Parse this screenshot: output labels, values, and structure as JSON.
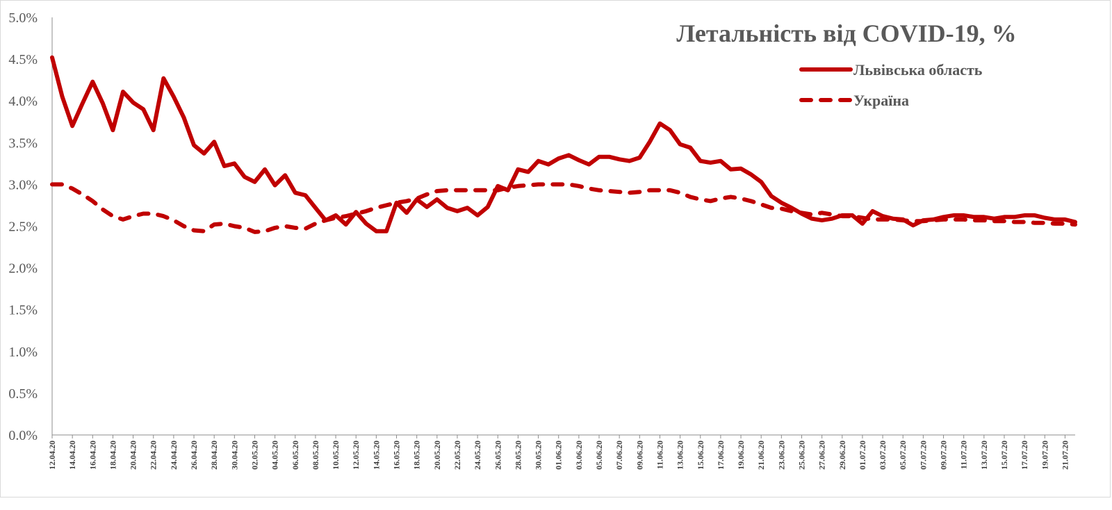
{
  "chart_data": {
    "type": "line",
    "title": "Летальність від COVID-19, %",
    "xlabel": "",
    "ylabel": "",
    "ylim": [
      0,
      5
    ],
    "yticks": [
      "0.0%",
      "0.5%",
      "1.0%",
      "1.5%",
      "2.0%",
      "2.5%",
      "3.0%",
      "3.5%",
      "4.0%",
      "4.5%",
      "5.0%"
    ],
    "legend_position": "top-right",
    "grid": false,
    "start_date": "12.04.20",
    "x_tick_labels": [
      "12.04.20",
      "14.04.20",
      "16.04.20",
      "18.04.20",
      "20.04.20",
      "22.04.20",
      "24.04.20",
      "26.04.20",
      "28.04.20",
      "30.04.20",
      "02.05.20",
      "04.05.20",
      "06.05.20",
      "08.05.20",
      "10.05.20",
      "12.05.20",
      "14.05.20",
      "16.05.20",
      "18.05.20",
      "20.05.20",
      "22.05.20",
      "24.05.20",
      "26.05.20",
      "28.05.20",
      "30.05.20",
      "01.06.20",
      "03.06.20",
      "05.06.20",
      "07.06.20",
      "09.06.20",
      "11.06.20",
      "13.06.20",
      "15.06.20",
      "17.06.20",
      "19.06.20",
      "21.06.20",
      "23.06.20",
      "25.06.20",
      "27.06.20",
      "29.06.20",
      "01.07.20",
      "03.07.20",
      "05.07.20",
      "07.07.20",
      "09.07.20",
      "11.07.20",
      "13.07.20",
      "15.07.20",
      "17.07.20",
      "19.07.20",
      "21.07.20"
    ],
    "series": [
      {
        "name": "Львівська область",
        "style": "solid",
        "color": "#c00000",
        "values": [
          4.52,
          4.05,
          3.7,
          3.97,
          4.23,
          3.97,
          3.65,
          4.11,
          3.98,
          3.9,
          3.65,
          4.27,
          4.05,
          3.8,
          3.47,
          3.37,
          3.51,
          3.22,
          3.25,
          3.09,
          3.03,
          3.18,
          2.99,
          3.11,
          2.9,
          2.87,
          2.72,
          2.57,
          2.63,
          2.52,
          2.67,
          2.53,
          2.44,
          2.44,
          2.78,
          2.66,
          2.82,
          2.73,
          2.82,
          2.72,
          2.68,
          2.72,
          2.63,
          2.73,
          2.98,
          2.93,
          3.18,
          3.15,
          3.28,
          3.24,
          3.31,
          3.35,
          3.29,
          3.24,
          3.33,
          3.33,
          3.3,
          3.28,
          3.32,
          3.51,
          3.73,
          3.65,
          3.48,
          3.44,
          3.28,
          3.26,
          3.28,
          3.18,
          3.19,
          3.12,
          3.03,
          2.86,
          2.78,
          2.72,
          2.65,
          2.59,
          2.57,
          2.59,
          2.63,
          2.63,
          2.53,
          2.68,
          2.62,
          2.59,
          2.58,
          2.51,
          2.57,
          2.58,
          2.61,
          2.63,
          2.63,
          2.61,
          2.61,
          2.59,
          2.61,
          2.61,
          2.63,
          2.63,
          2.6,
          2.58,
          2.58,
          2.55
        ]
      },
      {
        "name": "Україна",
        "style": "dashed",
        "color": "#c00000",
        "values": [
          3.0,
          3.0,
          2.95,
          2.88,
          2.8,
          2.7,
          2.62,
          2.58,
          2.62,
          2.65,
          2.65,
          2.62,
          2.57,
          2.5,
          2.45,
          2.44,
          2.52,
          2.53,
          2.5,
          2.48,
          2.43,
          2.44,
          2.48,
          2.5,
          2.48,
          2.47,
          2.53,
          2.57,
          2.6,
          2.62,
          2.65,
          2.68,
          2.72,
          2.75,
          2.78,
          2.8,
          2.83,
          2.88,
          2.92,
          2.93,
          2.93,
          2.93,
          2.93,
          2.93,
          2.93,
          2.96,
          2.98,
          2.99,
          3.0,
          3.0,
          3.0,
          3.0,
          2.98,
          2.95,
          2.93,
          2.92,
          2.91,
          2.9,
          2.91,
          2.93,
          2.93,
          2.93,
          2.9,
          2.85,
          2.82,
          2.8,
          2.83,
          2.85,
          2.83,
          2.8,
          2.76,
          2.72,
          2.71,
          2.68,
          2.66,
          2.64,
          2.66,
          2.64,
          2.62,
          2.62,
          2.6,
          2.58,
          2.58,
          2.58,
          2.57,
          2.56,
          2.56,
          2.57,
          2.58,
          2.58,
          2.58,
          2.57,
          2.57,
          2.56,
          2.56,
          2.55,
          2.55,
          2.54,
          2.54,
          2.53,
          2.53,
          2.52
        ]
      }
    ]
  }
}
